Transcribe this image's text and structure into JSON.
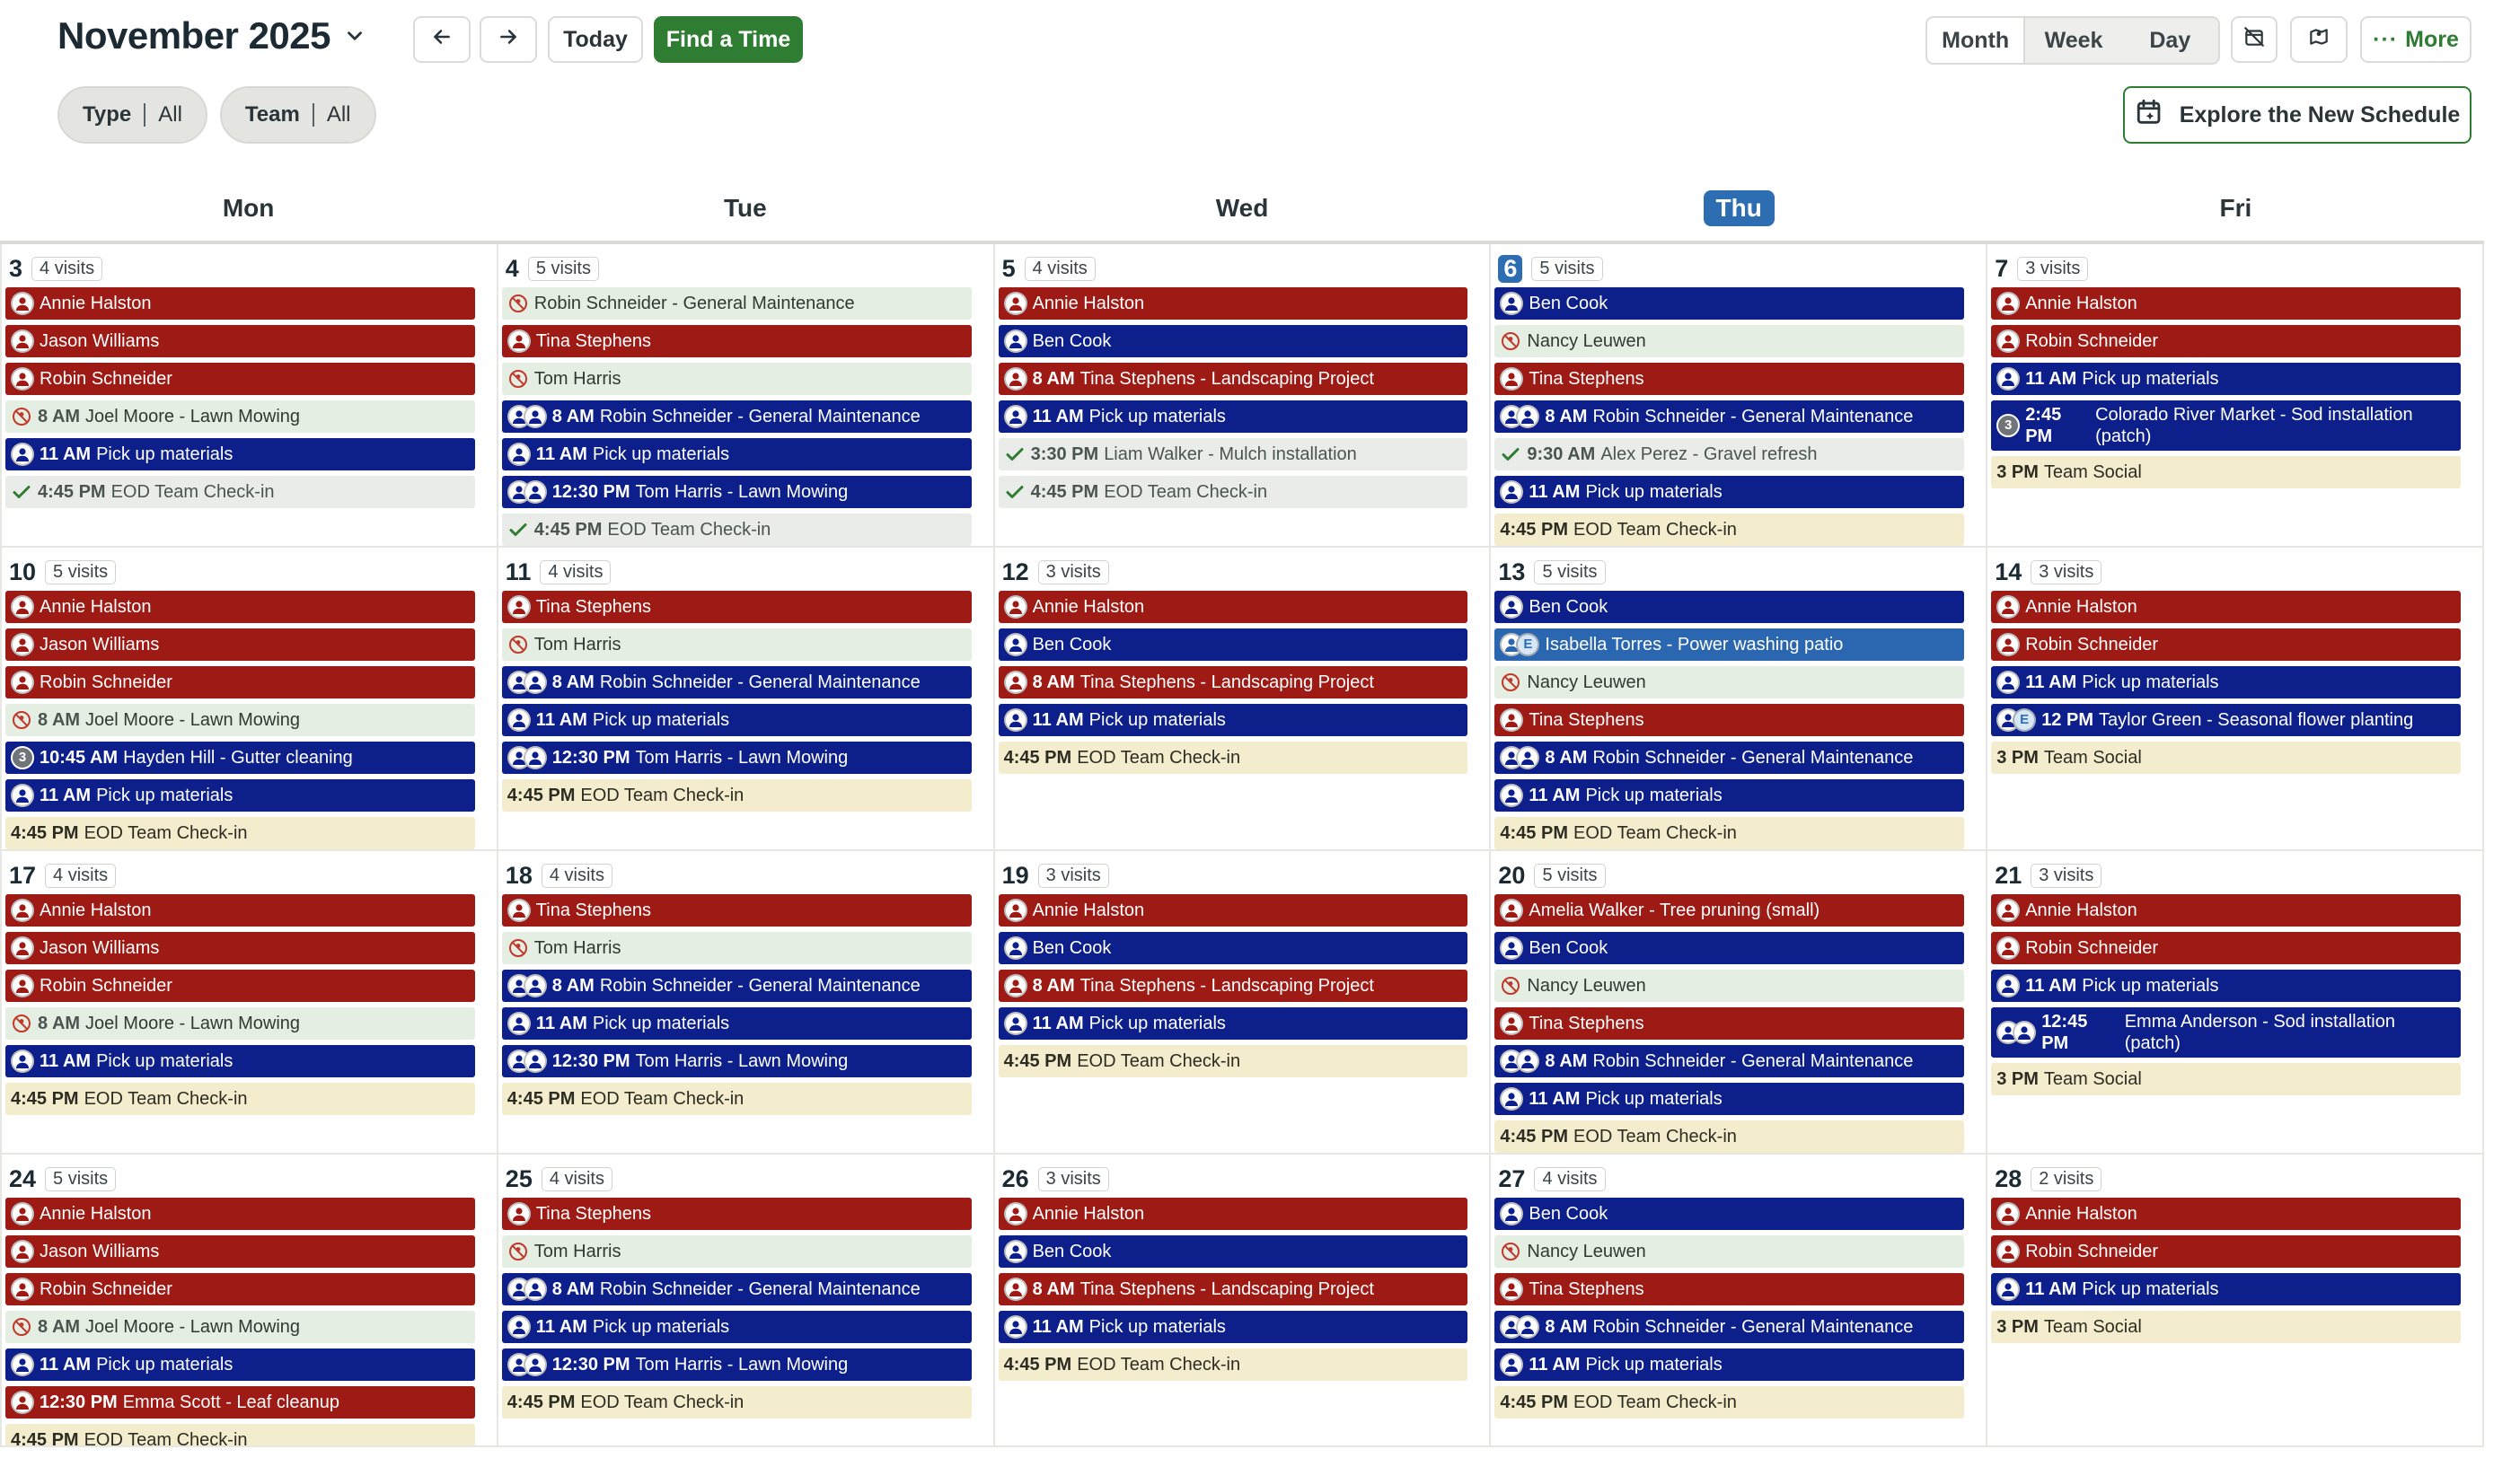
{
  "header": {
    "title": "November 2025",
    "today_label": "Today",
    "find_label": "Find a Time",
    "views": [
      "Month",
      "Week",
      "Day"
    ],
    "more_label": "More",
    "explore_label": "Explore the New Schedule"
  },
  "filters": [
    {
      "label": "Type",
      "value": "All"
    },
    {
      "label": "Team",
      "value": "All"
    }
  ],
  "days": [
    {
      "label": "Mon",
      "today": false
    },
    {
      "label": "Tue",
      "today": false
    },
    {
      "label": "Wed",
      "today": false
    },
    {
      "label": "Thu",
      "today": true
    },
    {
      "label": "Fri",
      "today": false
    }
  ],
  "colors": {
    "red": "#9e1a15",
    "navy": "#0c1f8a",
    "blue": "#2b67b0",
    "unscheduled": "#e4eee2",
    "completed": "#eaece9",
    "task": "#f3eccd",
    "accent": "#2f7d32"
  },
  "weeks": [
    [
      {
        "date": "3",
        "count": "4 visits",
        "events": [
          {
            "c": "red",
            "av": "p",
            "text": "Annie Halston"
          },
          {
            "c": "red",
            "av": "p",
            "text": "Jason Williams"
          },
          {
            "c": "red",
            "av": "p",
            "text": "Robin Schneider"
          },
          {
            "c": "green",
            "icon": "unassigned",
            "time": "8 AM",
            "text": "Joel Moore - Lawn Mowing"
          },
          {
            "c": "blue",
            "av": "p",
            "time": "11 AM",
            "text": "Pick up materials"
          },
          {
            "c": "grey",
            "icon": "check",
            "time": "4:45 PM",
            "text": "EOD Team Check-in"
          }
        ]
      },
      {
        "date": "4",
        "count": "5 visits",
        "events": [
          {
            "c": "green",
            "icon": "unassigned",
            "text": "Robin Schneider - General Maintenance"
          },
          {
            "c": "red",
            "av": "p",
            "text": "Tina Stephens"
          },
          {
            "c": "green",
            "icon": "unassigned",
            "text": "Tom Harris"
          },
          {
            "c": "blue",
            "av": "pp",
            "time": "8 AM",
            "text": "Robin Schneider - General Maintenance"
          },
          {
            "c": "blue",
            "av": "p",
            "time": "11 AM",
            "text": "Pick up materials"
          },
          {
            "c": "blue",
            "av": "pp",
            "time": "12:30 PM",
            "text": "Tom Harris - Lawn Mowing"
          },
          {
            "c": "grey",
            "icon": "check",
            "time": "4:45 PM",
            "text": "EOD Team Check-in"
          }
        ]
      },
      {
        "date": "5",
        "count": "4 visits",
        "events": [
          {
            "c": "red",
            "av": "p",
            "text": "Annie Halston"
          },
          {
            "c": "blue",
            "av": "p",
            "text": "Ben Cook"
          },
          {
            "c": "red",
            "av": "p",
            "time": "8 AM",
            "text": "Tina Stephens - Landscaping Project"
          },
          {
            "c": "blue",
            "av": "p",
            "time": "11 AM",
            "text": "Pick up materials"
          },
          {
            "c": "grey",
            "icon": "check",
            "time": "3:30 PM",
            "text": "Liam Walker - Mulch installation"
          },
          {
            "c": "grey",
            "icon": "check",
            "time": "4:45 PM",
            "text": "EOD Team Check-in"
          }
        ]
      },
      {
        "date": "6",
        "count": "5 visits",
        "today": true,
        "events": [
          {
            "c": "blue",
            "av": "p",
            "text": "Ben Cook"
          },
          {
            "c": "green",
            "icon": "unassigned",
            "text": "Nancy Leuwen"
          },
          {
            "c": "red",
            "av": "p",
            "text": "Tina Stephens"
          },
          {
            "c": "blue",
            "av": "pp",
            "time": "8 AM",
            "text": "Robin Schneider - General Maintenance"
          },
          {
            "c": "grey",
            "icon": "check",
            "time": "9:30 AM",
            "text": "Alex Perez - Gravel refresh"
          },
          {
            "c": "blue",
            "av": "p",
            "time": "11 AM",
            "text": "Pick up materials"
          },
          {
            "c": "cream",
            "time": "4:45 PM",
            "text": "EOD Team Check-in"
          }
        ]
      },
      {
        "date": "7",
        "count": "3 visits",
        "events": [
          {
            "c": "red",
            "av": "p",
            "text": "Annie Halston"
          },
          {
            "c": "red",
            "av": "p",
            "text": "Robin Schneider"
          },
          {
            "c": "blue",
            "av": "p",
            "time": "11 AM",
            "text": "Pick up materials"
          },
          {
            "c": "blue",
            "av": "n3",
            "time": "2:45 PM",
            "text": "Colorado River Market - Sod installation (patch)",
            "wrap": true
          },
          {
            "c": "cream",
            "time": "3 PM",
            "text": "Team Social"
          }
        ]
      }
    ],
    [
      {
        "date": "10",
        "count": "5 visits",
        "events": [
          {
            "c": "red",
            "av": "p",
            "text": "Annie Halston"
          },
          {
            "c": "red",
            "av": "p",
            "text": "Jason Williams"
          },
          {
            "c": "red",
            "av": "p",
            "text": "Robin Schneider"
          },
          {
            "c": "green",
            "icon": "unassigned",
            "time": "8 AM",
            "text": "Joel Moore - Lawn Mowing"
          },
          {
            "c": "blue",
            "av": "n3",
            "time": "10:45 AM",
            "text": "Hayden Hill - Gutter cleaning"
          },
          {
            "c": "blue",
            "av": "p",
            "time": "11 AM",
            "text": "Pick up materials"
          },
          {
            "c": "cream",
            "time": "4:45 PM",
            "text": "EOD Team Check-in"
          }
        ]
      },
      {
        "date": "11",
        "count": "4 visits",
        "events": [
          {
            "c": "red",
            "av": "p",
            "text": "Tina Stephens"
          },
          {
            "c": "green",
            "icon": "unassigned",
            "text": "Tom Harris"
          },
          {
            "c": "blue",
            "av": "pp",
            "time": "8 AM",
            "text": "Robin Schneider - General Maintenance"
          },
          {
            "c": "blue",
            "av": "p",
            "time": "11 AM",
            "text": "Pick up materials"
          },
          {
            "c": "blue",
            "av": "pp",
            "time": "12:30 PM",
            "text": "Tom Harris - Lawn Mowing"
          },
          {
            "c": "cream",
            "time": "4:45 PM",
            "text": "EOD Team Check-in"
          }
        ]
      },
      {
        "date": "12",
        "count": "3 visits",
        "events": [
          {
            "c": "red",
            "av": "p",
            "text": "Annie Halston"
          },
          {
            "c": "blue",
            "av": "p",
            "text": "Ben Cook"
          },
          {
            "c": "red",
            "av": "p",
            "time": "8 AM",
            "text": "Tina Stephens - Landscaping Project"
          },
          {
            "c": "blue",
            "av": "p",
            "time": "11 AM",
            "text": "Pick up materials"
          },
          {
            "c": "cream",
            "time": "4:45 PM",
            "text": "EOD Team Check-in"
          }
        ]
      },
      {
        "date": "13",
        "count": "5 visits",
        "events": [
          {
            "c": "blue",
            "av": "p",
            "text": "Ben Cook"
          },
          {
            "c": "mblue",
            "av": "pE",
            "text": "Isabella Torres - Power washing patio"
          },
          {
            "c": "green",
            "icon": "unassigned",
            "text": "Nancy Leuwen"
          },
          {
            "c": "red",
            "av": "p",
            "text": "Tina Stephens"
          },
          {
            "c": "blue",
            "av": "pp",
            "time": "8 AM",
            "text": "Robin Schneider - General Maintenance"
          },
          {
            "c": "blue",
            "av": "p",
            "time": "11 AM",
            "text": "Pick up materials"
          },
          {
            "c": "cream",
            "time": "4:45 PM",
            "text": "EOD Team Check-in"
          }
        ]
      },
      {
        "date": "14",
        "count": "3 visits",
        "events": [
          {
            "c": "red",
            "av": "p",
            "text": "Annie Halston"
          },
          {
            "c": "red",
            "av": "p",
            "text": "Robin Schneider"
          },
          {
            "c": "blue",
            "av": "p",
            "time": "11 AM",
            "text": "Pick up materials"
          },
          {
            "c": "blue",
            "av": "pE",
            "time": "12 PM",
            "text": "Taylor Green - Seasonal flower planting"
          },
          {
            "c": "cream",
            "time": "3 PM",
            "text": "Team Social"
          }
        ]
      }
    ],
    [
      {
        "date": "17",
        "count": "4 visits",
        "events": [
          {
            "c": "red",
            "av": "p",
            "text": "Annie Halston"
          },
          {
            "c": "red",
            "av": "p",
            "text": "Jason Williams"
          },
          {
            "c": "red",
            "av": "p",
            "text": "Robin Schneider"
          },
          {
            "c": "green",
            "icon": "unassigned",
            "time": "8 AM",
            "text": "Joel Moore - Lawn Mowing"
          },
          {
            "c": "blue",
            "av": "p",
            "time": "11 AM",
            "text": "Pick up materials"
          },
          {
            "c": "cream",
            "time": "4:45 PM",
            "text": "EOD Team Check-in"
          }
        ]
      },
      {
        "date": "18",
        "count": "4 visits",
        "events": [
          {
            "c": "red",
            "av": "p",
            "text": "Tina Stephens"
          },
          {
            "c": "green",
            "icon": "unassigned",
            "text": "Tom Harris"
          },
          {
            "c": "blue",
            "av": "pp",
            "time": "8 AM",
            "text": "Robin Schneider - General Maintenance"
          },
          {
            "c": "blue",
            "av": "p",
            "time": "11 AM",
            "text": "Pick up materials"
          },
          {
            "c": "blue",
            "av": "pp",
            "time": "12:30 PM",
            "text": "Tom Harris - Lawn Mowing"
          },
          {
            "c": "cream",
            "time": "4:45 PM",
            "text": "EOD Team Check-in"
          }
        ]
      },
      {
        "date": "19",
        "count": "3 visits",
        "events": [
          {
            "c": "red",
            "av": "p",
            "text": "Annie Halston"
          },
          {
            "c": "blue",
            "av": "p",
            "text": "Ben Cook"
          },
          {
            "c": "red",
            "av": "p",
            "time": "8 AM",
            "text": "Tina Stephens - Landscaping Project"
          },
          {
            "c": "blue",
            "av": "p",
            "time": "11 AM",
            "text": "Pick up materials"
          },
          {
            "c": "cream",
            "time": "4:45 PM",
            "text": "EOD Team Check-in"
          }
        ]
      },
      {
        "date": "20",
        "count": "5 visits",
        "events": [
          {
            "c": "red",
            "av": "p",
            "text": "Amelia Walker - Tree pruning (small)"
          },
          {
            "c": "blue",
            "av": "p",
            "text": "Ben Cook"
          },
          {
            "c": "green",
            "icon": "unassigned",
            "text": "Nancy Leuwen"
          },
          {
            "c": "red",
            "av": "p",
            "text": "Tina Stephens"
          },
          {
            "c": "blue",
            "av": "pp",
            "time": "8 AM",
            "text": "Robin Schneider - General Maintenance"
          },
          {
            "c": "blue",
            "av": "p",
            "time": "11 AM",
            "text": "Pick up materials"
          },
          {
            "c": "cream",
            "time": "4:45 PM",
            "text": "EOD Team Check-in"
          }
        ]
      },
      {
        "date": "21",
        "count": "3 visits",
        "events": [
          {
            "c": "red",
            "av": "p",
            "text": "Annie Halston"
          },
          {
            "c": "red",
            "av": "p",
            "text": "Robin Schneider"
          },
          {
            "c": "blue",
            "av": "p",
            "time": "11 AM",
            "text": "Pick up materials"
          },
          {
            "c": "blue",
            "av": "pp",
            "time": "12:45 PM",
            "text": "Emma Anderson - Sod installation (patch)",
            "wrap": true
          },
          {
            "c": "cream",
            "time": "3 PM",
            "text": "Team Social"
          }
        ]
      }
    ],
    [
      {
        "date": "24",
        "count": "5 visits",
        "events": [
          {
            "c": "red",
            "av": "p",
            "text": "Annie Halston"
          },
          {
            "c": "red",
            "av": "p",
            "text": "Jason Williams"
          },
          {
            "c": "red",
            "av": "p",
            "text": "Robin Schneider"
          },
          {
            "c": "green",
            "icon": "unassigned",
            "time": "8 AM",
            "text": "Joel Moore - Lawn Mowing"
          },
          {
            "c": "blue",
            "av": "p",
            "time": "11 AM",
            "text": "Pick up materials"
          },
          {
            "c": "red",
            "av": "p",
            "time": "12:30 PM",
            "text": "Emma Scott - Leaf cleanup"
          },
          {
            "c": "cream",
            "time": "4:45 PM",
            "text": "EOD Team Check-in"
          }
        ]
      },
      {
        "date": "25",
        "count": "4 visits",
        "events": [
          {
            "c": "red",
            "av": "p",
            "text": "Tina Stephens"
          },
          {
            "c": "green",
            "icon": "unassigned",
            "text": "Tom Harris"
          },
          {
            "c": "blue",
            "av": "pp",
            "time": "8 AM",
            "text": "Robin Schneider - General Maintenance"
          },
          {
            "c": "blue",
            "av": "p",
            "time": "11 AM",
            "text": "Pick up materials"
          },
          {
            "c": "blue",
            "av": "pp",
            "time": "12:30 PM",
            "text": "Tom Harris - Lawn Mowing"
          },
          {
            "c": "cream",
            "time": "4:45 PM",
            "text": "EOD Team Check-in"
          }
        ]
      },
      {
        "date": "26",
        "count": "3 visits",
        "events": [
          {
            "c": "red",
            "av": "p",
            "text": "Annie Halston"
          },
          {
            "c": "blue",
            "av": "p",
            "text": "Ben Cook"
          },
          {
            "c": "red",
            "av": "p",
            "time": "8 AM",
            "text": "Tina Stephens - Landscaping Project"
          },
          {
            "c": "blue",
            "av": "p",
            "time": "11 AM",
            "text": "Pick up materials"
          },
          {
            "c": "cream",
            "time": "4:45 PM",
            "text": "EOD Team Check-in"
          }
        ]
      },
      {
        "date": "27",
        "count": "4 visits",
        "events": [
          {
            "c": "blue",
            "av": "p",
            "text": "Ben Cook"
          },
          {
            "c": "green",
            "icon": "unassigned",
            "text": "Nancy Leuwen"
          },
          {
            "c": "red",
            "av": "p",
            "text": "Tina Stephens"
          },
          {
            "c": "blue",
            "av": "pp",
            "time": "8 AM",
            "text": "Robin Schneider - General Maintenance"
          },
          {
            "c": "blue",
            "av": "p",
            "time": "11 AM",
            "text": "Pick up materials"
          },
          {
            "c": "cream",
            "time": "4:45 PM",
            "text": "EOD Team Check-in"
          }
        ]
      },
      {
        "date": "28",
        "count": "2 visits",
        "events": [
          {
            "c": "red",
            "av": "p",
            "text": "Annie Halston"
          },
          {
            "c": "red",
            "av": "p",
            "text": "Robin Schneider"
          },
          {
            "c": "blue",
            "av": "p",
            "time": "11 AM",
            "text": "Pick up materials"
          },
          {
            "c": "cream",
            "time": "3 PM",
            "text": "Team Social"
          }
        ]
      }
    ]
  ]
}
